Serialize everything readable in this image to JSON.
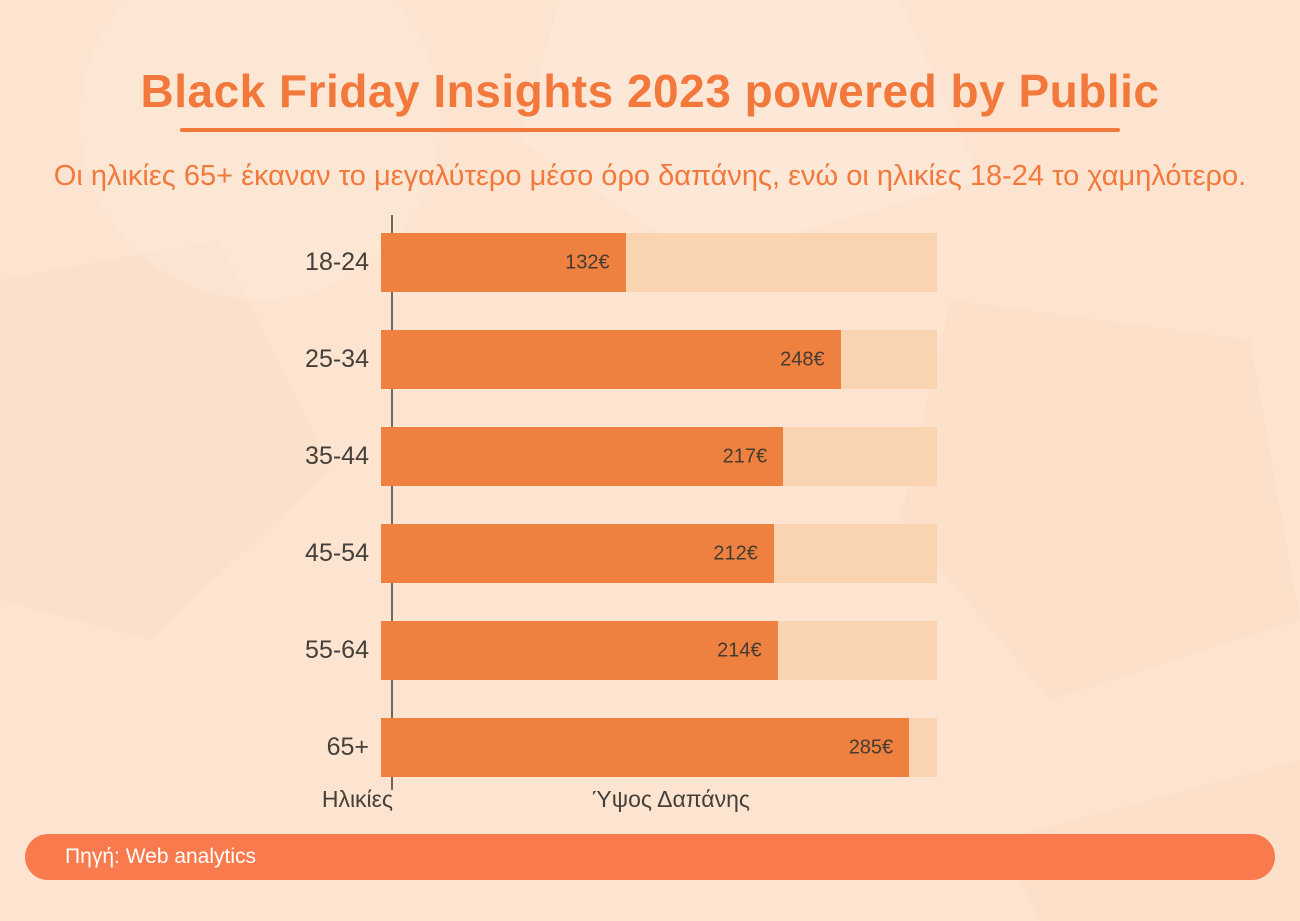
{
  "title": "Black Friday Insights 2023 powered by Public",
  "subtitle": "Οι ηλικίες 65+ έκαναν το μεγαλύτερο μέσο όρο δαπάνης, ενώ οι ηλικίες 18-24 το χαμηλότερο.",
  "chart_data": {
    "type": "bar",
    "orientation": "horizontal",
    "categories": [
      "18-24",
      "25-34",
      "35-44",
      "45-54",
      "55-64",
      "65+"
    ],
    "values": [
      132,
      248,
      217,
      212,
      214,
      285
    ],
    "value_labels": [
      "132€",
      "248€",
      "217€",
      "212€",
      "214€",
      "285€"
    ],
    "unit": "€",
    "xlabel": "Ύψος Δαπάνης",
    "ylabel": "Ηλικίες",
    "xlim": [
      0,
      300
    ],
    "grid": false,
    "legend": false,
    "title": "Black Friday Insights 2023 powered by Public"
  },
  "footer": {
    "source_label": "Πηγή: Web analytics"
  },
  "colors": {
    "background": "#FCE4D1",
    "accent": "#F2793B",
    "bar_fill": "#EF8140",
    "bar_track": "#FAD3B1",
    "footer_bg": "#F97A4D",
    "text_dark": "#453F39",
    "axis_line": "#6F6760"
  }
}
